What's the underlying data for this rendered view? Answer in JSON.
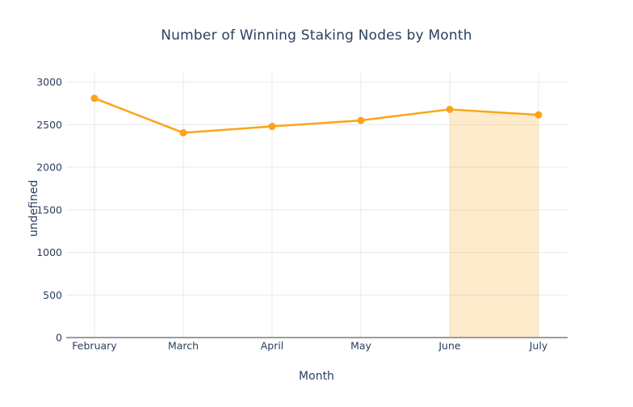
{
  "chart_data": {
    "type": "line",
    "title": "Number of Winning Staking Nodes by Month",
    "xlabel": "Month",
    "ylabel": "undefined",
    "categories": [
      "February",
      "March",
      "April",
      "May",
      "June",
      "July"
    ],
    "series": [
      {
        "name": "",
        "values": [
          2810,
          2405,
          2480,
          2550,
          2680,
          2615
        ]
      }
    ],
    "yticks": [
      0,
      500,
      1000,
      1500,
      2000,
      2500,
      3000
    ],
    "ylim": [
      0,
      3100
    ],
    "grid": true,
    "legend": "none",
    "colors": {
      "line": "#fca417",
      "marker": "#fca417",
      "highlight_fill": "rgba(252,164,23,0.22)",
      "gridline": "#e9e9e9",
      "zeroline": "#9c9c9c",
      "text": "#2a3f5f"
    },
    "highlight_band": {
      "from_category": "June",
      "to_category": "July",
      "mode": "area-under-line-to-zero"
    }
  }
}
